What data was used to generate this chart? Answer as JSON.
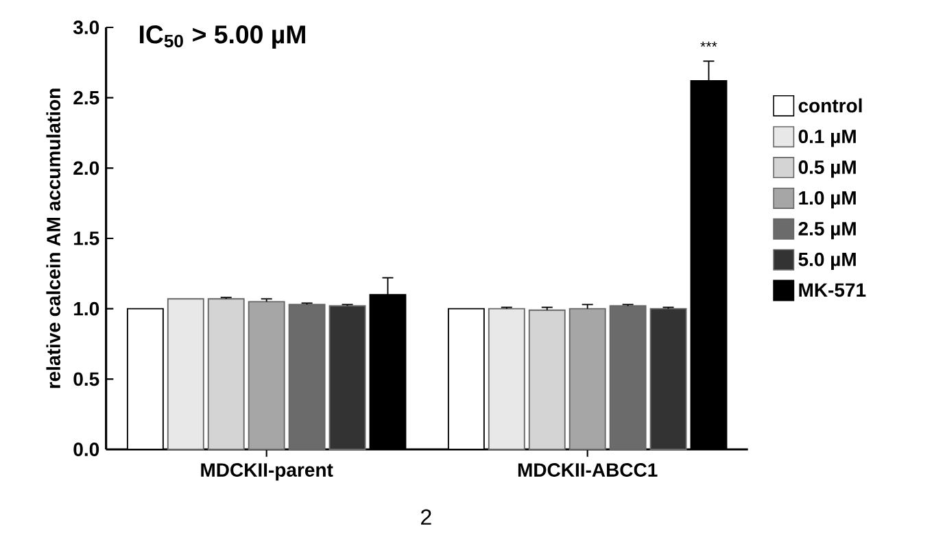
{
  "chart_data": {
    "type": "bar",
    "title": "IC$_{50}$ > 5.00 µM",
    "ylabel": "relative calcein AM accumulation",
    "categories": [
      "MDCKII-parent",
      "MDCKII-ABCC1"
    ],
    "series": [
      {
        "name": "control",
        "color": "#ffffff",
        "values": [
          1.0,
          1.0
        ],
        "errors": [
          null,
          null
        ]
      },
      {
        "name": "0.1 µM",
        "color": "#e8e8e8",
        "values": [
          1.07,
          1.0
        ],
        "errors": [
          null,
          0.01
        ]
      },
      {
        "name": "0.5 µM",
        "color": "#d4d4d4",
        "values": [
          1.07,
          0.99
        ],
        "errors": [
          0.01,
          0.02
        ]
      },
      {
        "name": "1.0 µM",
        "color": "#a6a6a6",
        "values": [
          1.05,
          1.0
        ],
        "errors": [
          0.02,
          0.03
        ]
      },
      {
        "name": "2.5 µM",
        "color": "#6b6b6b",
        "values": [
          1.03,
          1.02
        ],
        "errors": [
          0.01,
          0.01
        ]
      },
      {
        "name": "5.0 µM",
        "color": "#333333",
        "values": [
          1.02,
          1.0
        ],
        "errors": [
          0.01,
          0.01
        ]
      },
      {
        "name": "MK-571",
        "color": "#000000",
        "values": [
          1.1,
          2.62
        ],
        "errors": [
          0.12,
          0.14
        ]
      }
    ],
    "ylim": [
      0,
      3
    ],
    "yticks": [
      {
        "value": 0,
        "label": "0.0"
      },
      {
        "value": 0.5,
        "label": "0.5"
      },
      {
        "value": 1,
        "label": "1.0"
      },
      {
        "value": 1.5,
        "label": "1.5"
      },
      {
        "value": 2,
        "label": "2.0"
      },
      {
        "value": 2.5,
        "label": "2.5"
      },
      {
        "value": 3,
        "label": "3.0"
      }
    ],
    "legend": "right",
    "grid": false,
    "annotations": [
      "***",
      "2"
    ]
  }
}
